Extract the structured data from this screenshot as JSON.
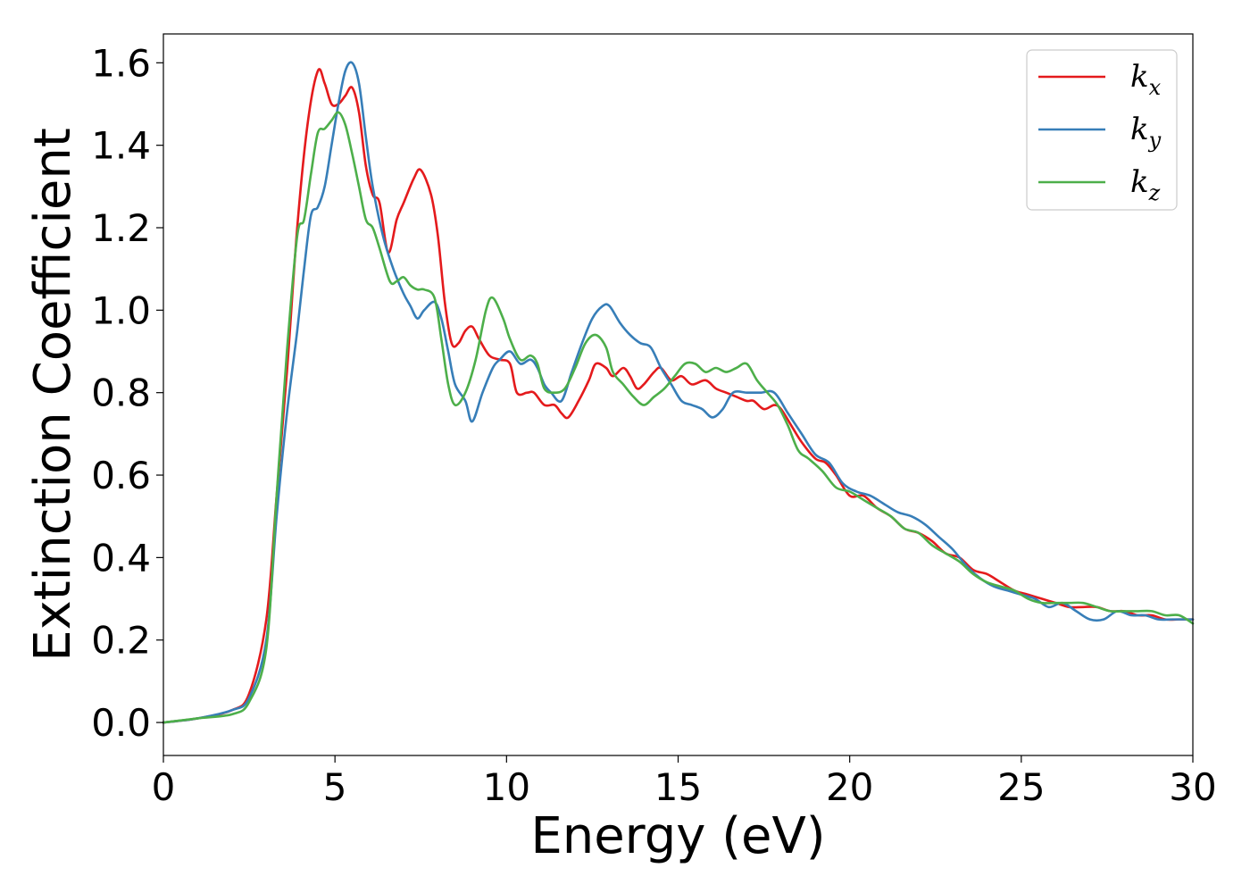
{
  "chart_data": {
    "type": "line",
    "xlabel": "Energy (eV)",
    "ylabel": "Extinction Coefficient",
    "xlim": [
      0,
      30
    ],
    "ylim": [
      -0.08,
      1.67
    ],
    "xticks": [
      0,
      5,
      10,
      15,
      20,
      25,
      30
    ],
    "yticks": [
      0.0,
      0.2,
      0.4,
      0.6,
      0.8,
      1.0,
      1.2,
      1.4,
      1.6
    ],
    "grid": false,
    "legend_position": "top-right",
    "series": [
      {
        "name": "k",
        "sub": "x",
        "color": "#e41a1c",
        "points": [
          [
            0,
            0
          ],
          [
            1,
            0.01
          ],
          [
            2,
            0.03
          ],
          [
            2.5,
            0.07
          ],
          [
            3,
            0.25
          ],
          [
            3.3,
            0.55
          ],
          [
            3.6,
            0.85
          ],
          [
            3.9,
            1.2
          ],
          [
            4.2,
            1.45
          ],
          [
            4.5,
            1.58
          ],
          [
            4.7,
            1.55
          ],
          [
            4.9,
            1.5
          ],
          [
            5.1,
            1.5
          ],
          [
            5.3,
            1.52
          ],
          [
            5.5,
            1.54
          ],
          [
            5.7,
            1.48
          ],
          [
            5.9,
            1.35
          ],
          [
            6.1,
            1.28
          ],
          [
            6.3,
            1.26
          ],
          [
            6.55,
            1.14
          ],
          [
            6.8,
            1.22
          ],
          [
            7.0,
            1.26
          ],
          [
            7.3,
            1.32
          ],
          [
            7.5,
            1.34
          ],
          [
            7.8,
            1.28
          ],
          [
            8.0,
            1.18
          ],
          [
            8.2,
            1.02
          ],
          [
            8.4,
            0.92
          ],
          [
            8.6,
            0.92
          ],
          [
            8.8,
            0.95
          ],
          [
            9.0,
            0.96
          ],
          [
            9.2,
            0.93
          ],
          [
            9.5,
            0.89
          ],
          [
            9.8,
            0.88
          ],
          [
            10.1,
            0.87
          ],
          [
            10.3,
            0.8
          ],
          [
            10.6,
            0.8
          ],
          [
            10.8,
            0.8
          ],
          [
            11.1,
            0.77
          ],
          [
            11.4,
            0.77
          ],
          [
            11.6,
            0.75
          ],
          [
            11.8,
            0.74
          ],
          [
            12.1,
            0.78
          ],
          [
            12.4,
            0.83
          ],
          [
            12.6,
            0.87
          ],
          [
            12.9,
            0.86
          ],
          [
            13.1,
            0.84
          ],
          [
            13.4,
            0.86
          ],
          [
            13.6,
            0.84
          ],
          [
            13.8,
            0.81
          ],
          [
            14.0,
            0.82
          ],
          [
            14.3,
            0.85
          ],
          [
            14.5,
            0.86
          ],
          [
            14.8,
            0.83
          ],
          [
            15.1,
            0.84
          ],
          [
            15.4,
            0.82
          ],
          [
            15.8,
            0.83
          ],
          [
            16.1,
            0.81
          ],
          [
            16.4,
            0.8
          ],
          [
            16.7,
            0.79
          ],
          [
            17.0,
            0.78
          ],
          [
            17.2,
            0.78
          ],
          [
            17.5,
            0.76
          ],
          [
            17.8,
            0.77
          ],
          [
            18.0,
            0.76
          ],
          [
            18.3,
            0.72
          ],
          [
            18.6,
            0.68
          ],
          [
            19.0,
            0.64
          ],
          [
            19.3,
            0.63
          ],
          [
            19.6,
            0.6
          ],
          [
            20.0,
            0.55
          ],
          [
            20.4,
            0.55
          ],
          [
            20.8,
            0.52
          ],
          [
            21.2,
            0.5
          ],
          [
            21.6,
            0.47
          ],
          [
            22.0,
            0.46
          ],
          [
            22.4,
            0.44
          ],
          [
            22.8,
            0.41
          ],
          [
            23.2,
            0.4
          ],
          [
            23.6,
            0.37
          ],
          [
            24.0,
            0.36
          ],
          [
            24.4,
            0.34
          ],
          [
            24.8,
            0.32
          ],
          [
            25.2,
            0.31
          ],
          [
            25.6,
            0.3
          ],
          [
            26.0,
            0.29
          ],
          [
            26.4,
            0.28
          ],
          [
            26.8,
            0.28
          ],
          [
            27.2,
            0.28
          ],
          [
            27.6,
            0.27
          ],
          [
            28.0,
            0.27
          ],
          [
            28.4,
            0.26
          ],
          [
            28.8,
            0.26
          ],
          [
            29.2,
            0.25
          ],
          [
            29.6,
            0.25
          ],
          [
            30.0,
            0.25
          ]
        ]
      },
      {
        "name": "k",
        "sub": "y",
        "color": "#377eb8",
        "points": [
          [
            0,
            0
          ],
          [
            1,
            0.01
          ],
          [
            2,
            0.03
          ],
          [
            2.5,
            0.06
          ],
          [
            3,
            0.2
          ],
          [
            3.3,
            0.5
          ],
          [
            3.6,
            0.75
          ],
          [
            3.9,
            0.95
          ],
          [
            4.1,
            1.1
          ],
          [
            4.3,
            1.23
          ],
          [
            4.5,
            1.25
          ],
          [
            4.7,
            1.3
          ],
          [
            4.9,
            1.4
          ],
          [
            5.1,
            1.5
          ],
          [
            5.3,
            1.58
          ],
          [
            5.5,
            1.6
          ],
          [
            5.7,
            1.55
          ],
          [
            5.9,
            1.42
          ],
          [
            6.1,
            1.3
          ],
          [
            6.4,
            1.18
          ],
          [
            6.7,
            1.1
          ],
          [
            7.0,
            1.04
          ],
          [
            7.2,
            1.01
          ],
          [
            7.4,
            0.98
          ],
          [
            7.6,
            1.0
          ],
          [
            7.9,
            1.02
          ],
          [
            8.1,
            0.98
          ],
          [
            8.3,
            0.9
          ],
          [
            8.5,
            0.82
          ],
          [
            8.8,
            0.78
          ],
          [
            9.0,
            0.73
          ],
          [
            9.3,
            0.8
          ],
          [
            9.6,
            0.86
          ],
          [
            9.8,
            0.88
          ],
          [
            10.1,
            0.9
          ],
          [
            10.4,
            0.87
          ],
          [
            10.7,
            0.88
          ],
          [
            10.9,
            0.86
          ],
          [
            11.1,
            0.82
          ],
          [
            11.3,
            0.8
          ],
          [
            11.6,
            0.78
          ],
          [
            11.9,
            0.85
          ],
          [
            12.2,
            0.92
          ],
          [
            12.5,
            0.98
          ],
          [
            12.8,
            1.01
          ],
          [
            13.0,
            1.01
          ],
          [
            13.3,
            0.97
          ],
          [
            13.6,
            0.94
          ],
          [
            13.9,
            0.92
          ],
          [
            14.2,
            0.91
          ],
          [
            14.5,
            0.86
          ],
          [
            14.8,
            0.82
          ],
          [
            15.1,
            0.78
          ],
          [
            15.4,
            0.77
          ],
          [
            15.7,
            0.76
          ],
          [
            16.0,
            0.74
          ],
          [
            16.3,
            0.76
          ],
          [
            16.6,
            0.8
          ],
          [
            17.0,
            0.8
          ],
          [
            17.4,
            0.8
          ],
          [
            17.8,
            0.8
          ],
          [
            18.2,
            0.75
          ],
          [
            18.6,
            0.7
          ],
          [
            19.0,
            0.65
          ],
          [
            19.4,
            0.63
          ],
          [
            19.8,
            0.58
          ],
          [
            20.2,
            0.56
          ],
          [
            20.6,
            0.55
          ],
          [
            21.0,
            0.53
          ],
          [
            21.4,
            0.51
          ],
          [
            21.8,
            0.5
          ],
          [
            22.2,
            0.48
          ],
          [
            22.6,
            0.45
          ],
          [
            23.0,
            0.42
          ],
          [
            23.4,
            0.38
          ],
          [
            23.8,
            0.35
          ],
          [
            24.2,
            0.33
          ],
          [
            24.6,
            0.32
          ],
          [
            25.0,
            0.31
          ],
          [
            25.4,
            0.3
          ],
          [
            25.8,
            0.28
          ],
          [
            26.2,
            0.29
          ],
          [
            26.6,
            0.27
          ],
          [
            27.0,
            0.25
          ],
          [
            27.4,
            0.25
          ],
          [
            27.8,
            0.27
          ],
          [
            28.2,
            0.26
          ],
          [
            28.6,
            0.26
          ],
          [
            29.0,
            0.25
          ],
          [
            29.4,
            0.25
          ],
          [
            30.0,
            0.25
          ]
        ]
      },
      {
        "name": "k",
        "sub": "z",
        "color": "#4daf4a",
        "points": [
          [
            0,
            0
          ],
          [
            1,
            0.01
          ],
          [
            2,
            0.02
          ],
          [
            2.5,
            0.05
          ],
          [
            3,
            0.18
          ],
          [
            3.3,
            0.55
          ],
          [
            3.6,
            0.9
          ],
          [
            3.9,
            1.18
          ],
          [
            4.1,
            1.22
          ],
          [
            4.3,
            1.33
          ],
          [
            4.5,
            1.43
          ],
          [
            4.7,
            1.44
          ],
          [
            4.9,
            1.46
          ],
          [
            5.1,
            1.48
          ],
          [
            5.3,
            1.45
          ],
          [
            5.5,
            1.38
          ],
          [
            5.7,
            1.3
          ],
          [
            5.9,
            1.22
          ],
          [
            6.1,
            1.2
          ],
          [
            6.3,
            1.15
          ],
          [
            6.6,
            1.07
          ],
          [
            6.8,
            1.07
          ],
          [
            7.0,
            1.08
          ],
          [
            7.2,
            1.06
          ],
          [
            7.4,
            1.05
          ],
          [
            7.6,
            1.05
          ],
          [
            7.9,
            1.03
          ],
          [
            8.1,
            0.93
          ],
          [
            8.3,
            0.82
          ],
          [
            8.5,
            0.77
          ],
          [
            8.8,
            0.8
          ],
          [
            9.1,
            0.88
          ],
          [
            9.4,
            1.0
          ],
          [
            9.6,
            1.03
          ],
          [
            9.9,
            0.98
          ],
          [
            10.1,
            0.93
          ],
          [
            10.4,
            0.88
          ],
          [
            10.7,
            0.89
          ],
          [
            10.9,
            0.87
          ],
          [
            11.1,
            0.81
          ],
          [
            11.4,
            0.8
          ],
          [
            11.7,
            0.81
          ],
          [
            12.0,
            0.86
          ],
          [
            12.3,
            0.92
          ],
          [
            12.6,
            0.94
          ],
          [
            12.9,
            0.91
          ],
          [
            13.1,
            0.85
          ],
          [
            13.4,
            0.82
          ],
          [
            13.7,
            0.79
          ],
          [
            14.0,
            0.77
          ],
          [
            14.3,
            0.79
          ],
          [
            14.6,
            0.81
          ],
          [
            14.9,
            0.84
          ],
          [
            15.2,
            0.87
          ],
          [
            15.5,
            0.87
          ],
          [
            15.8,
            0.85
          ],
          [
            16.1,
            0.86
          ],
          [
            16.4,
            0.85
          ],
          [
            16.7,
            0.86
          ],
          [
            17.0,
            0.87
          ],
          [
            17.3,
            0.83
          ],
          [
            17.6,
            0.8
          ],
          [
            17.9,
            0.77
          ],
          [
            18.2,
            0.72
          ],
          [
            18.5,
            0.66
          ],
          [
            18.8,
            0.64
          ],
          [
            19.2,
            0.61
          ],
          [
            19.6,
            0.57
          ],
          [
            20.0,
            0.56
          ],
          [
            20.4,
            0.54
          ],
          [
            20.8,
            0.52
          ],
          [
            21.2,
            0.5
          ],
          [
            21.6,
            0.47
          ],
          [
            22.0,
            0.46
          ],
          [
            22.4,
            0.43
          ],
          [
            22.8,
            0.41
          ],
          [
            23.2,
            0.39
          ],
          [
            23.6,
            0.36
          ],
          [
            24.0,
            0.34
          ],
          [
            24.4,
            0.33
          ],
          [
            24.8,
            0.32
          ],
          [
            25.2,
            0.3
          ],
          [
            25.6,
            0.29
          ],
          [
            26.0,
            0.29
          ],
          [
            26.4,
            0.29
          ],
          [
            26.8,
            0.29
          ],
          [
            27.2,
            0.28
          ],
          [
            27.6,
            0.27
          ],
          [
            28.0,
            0.27
          ],
          [
            28.4,
            0.27
          ],
          [
            28.8,
            0.27
          ],
          [
            29.2,
            0.26
          ],
          [
            29.6,
            0.26
          ],
          [
            30.0,
            0.24
          ]
        ]
      }
    ]
  }
}
